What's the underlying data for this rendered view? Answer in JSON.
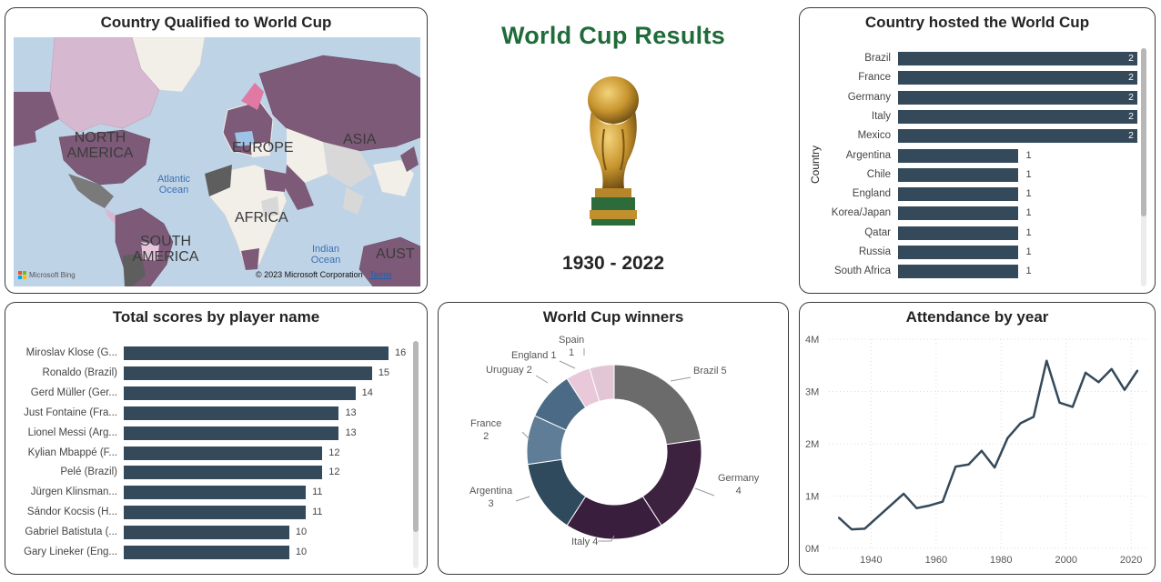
{
  "dashboard": {
    "title": "World Cup Results",
    "year_range": "1930 - 2022"
  },
  "map_card": {
    "title": "Country Qualified to World Cup",
    "continents": [
      "NORTH AMERICA",
      "EUROPE",
      "ASIA",
      "AFRICA",
      "SOUTH AMERICA",
      "AUST"
    ],
    "oceans": [
      "Atlantic Ocean",
      "Indian Ocean"
    ],
    "copyright": "© 2023 Microsoft Corporation",
    "terms": "Terms",
    "logo": "Microsoft Bing",
    "colors": {
      "water": "#bfd3e6",
      "qualified": "#7d5a78",
      "land": "#f2efe9",
      "other": "#d8d8d8"
    }
  },
  "hosts_card": {
    "title": "Country hosted the World Cup",
    "axis_title": "Country"
  },
  "scores_card": {
    "title": "Total scores by player name"
  },
  "winners_card": {
    "title": "World Cup winners"
  },
  "attendance_card": {
    "title": "Attendance by year"
  },
  "chart_data": [
    {
      "id": "hosts",
      "type": "bar",
      "orientation": "horizontal",
      "title": "Country hosted the World Cup",
      "ylabel": "Country",
      "categories": [
        "Brazil",
        "France",
        "Germany",
        "Italy",
        "Mexico",
        "Argentina",
        "Chile",
        "England",
        "Korea/Japan",
        "Qatar",
        "Russia",
        "South Africa"
      ],
      "values": [
        2,
        2,
        2,
        2,
        2,
        1,
        1,
        1,
        1,
        1,
        1,
        1
      ],
      "xlim": [
        0,
        2
      ],
      "color": "#34495a"
    },
    {
      "id": "scores",
      "type": "bar",
      "orientation": "horizontal",
      "title": "Total scores by player name",
      "categories": [
        "Miroslav Klose (G...",
        "Ronaldo (Brazil)",
        "Gerd Müller (Ger...",
        "Just Fontaine (Fra...",
        "Lionel Messi (Arg...",
        "Kylian Mbappé (F...",
        "Pelé (Brazil)",
        "Jürgen Klinsman...",
        "Sándor Kocsis (H...",
        "Gabriel Batistuta (...",
        "Gary Lineker (Eng..."
      ],
      "values": [
        16,
        15,
        14,
        13,
        13,
        12,
        12,
        11,
        11,
        10,
        10
      ],
      "xlim": [
        0,
        16
      ],
      "color": "#34495a"
    },
    {
      "id": "winners",
      "type": "pie",
      "style": "donut",
      "title": "World Cup winners",
      "categories": [
        "Brazil",
        "Germany",
        "Italy",
        "Argentina",
        "France",
        "Uruguay",
        "England",
        "Spain"
      ],
      "values": [
        5,
        4,
        4,
        3,
        2,
        2,
        1,
        1
      ],
      "colors": [
        "#6b6b6b",
        "#3d2240",
        "#3a1e3e",
        "#2f4a5c",
        "#5f7d96",
        "#4b6a86",
        "#e9c9d9",
        "#e2c6d6"
      ],
      "labels": [
        "Brazil 5",
        "Germany 4",
        "Italy 4",
        "Argentina 3",
        "France 2",
        "Uruguay 2",
        "England 1",
        "Spain 1"
      ]
    },
    {
      "id": "attendance",
      "type": "line",
      "title": "Attendance by year",
      "x": [
        1930,
        1934,
        1938,
        1950,
        1954,
        1958,
        1962,
        1966,
        1970,
        1974,
        1978,
        1982,
        1986,
        1990,
        1994,
        1998,
        2002,
        2006,
        2010,
        2014,
        2018,
        2022
      ],
      "values": [
        590549,
        363000,
        375700,
        1045246,
        768607,
        819810,
        893172,
        1563135,
        1603975,
        1865753,
        1545791,
        2109723,
        2394031,
        2516215,
        3587538,
        2785100,
        2705197,
        3359439,
        3178856,
        3429873,
        3031768,
        3404252
      ],
      "xticks": [
        1940,
        1960,
        1980,
        2000,
        2020
      ],
      "xtick_labels": [
        "1940",
        "1960",
        "1980",
        "2000",
        "2020"
      ],
      "yticks": [
        0,
        1000000,
        2000000,
        3000000,
        4000000
      ],
      "ytick_labels": [
        "0M",
        "1M",
        "2M",
        "3M",
        "4M"
      ],
      "xlim": [
        1927,
        2025
      ],
      "ylim": [
        0,
        4000000
      ],
      "grid": true,
      "color": "#34495a"
    }
  ]
}
